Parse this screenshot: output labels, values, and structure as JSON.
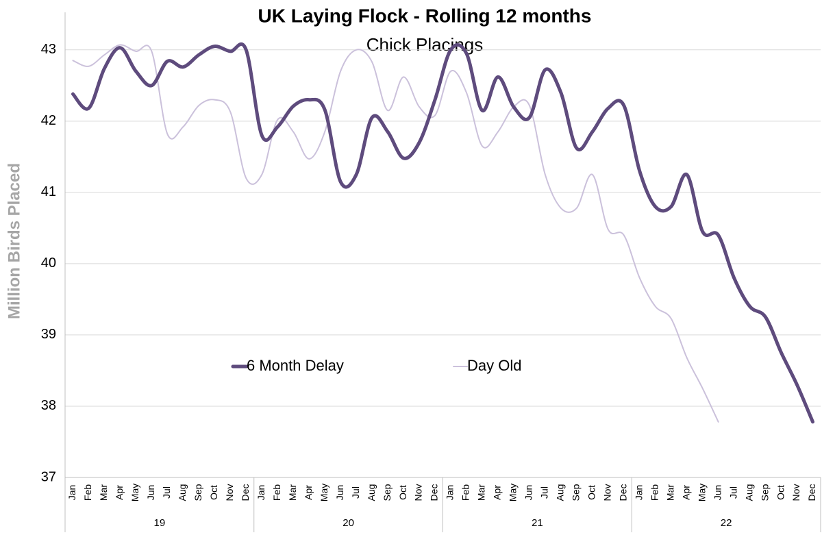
{
  "chart_data": {
    "type": "line",
    "title": "UK Laying Flock - Rolling 12 months",
    "subtitle": "Chick Placings",
    "y_label": "Million Birds Placed",
    "categories": [
      "Jan",
      "Feb",
      "Mar",
      "Apr",
      "May",
      "Jun",
      "Jul",
      "Aug",
      "Sep",
      "Oct",
      "Nov",
      "Dec",
      "Jan",
      "Feb",
      "Mar",
      "Apr",
      "May",
      "Jun",
      "Jul",
      "Aug",
      "Sep",
      "Oct",
      "Nov",
      "Dec",
      "Jan",
      "Feb",
      "Mar",
      "Apr",
      "May",
      "Jun",
      "Jul",
      "Aug",
      "Sep",
      "Oct",
      "Nov",
      "Dec",
      "Jan",
      "Feb",
      "Mar",
      "Apr",
      "May",
      "Jun",
      "Jul",
      "Aug",
      "Sep",
      "Oct",
      "Nov",
      "Dec"
    ],
    "x_groups": [
      "19",
      "20",
      "21",
      "22"
    ],
    "series": [
      {
        "name": "6 Month Delay",
        "color": "#5e4b7d",
        "width": 5,
        "values": [
          42.38,
          42.18,
          42.74,
          43.03,
          42.7,
          42.5,
          42.84,
          42.76,
          42.93,
          43.05,
          42.98,
          43.0,
          41.8,
          41.92,
          42.21,
          42.3,
          42.16,
          41.15,
          41.25,
          42.05,
          41.85,
          41.48,
          41.7,
          42.3,
          43.0,
          42.95,
          42.15,
          42.62,
          42.2,
          42.05,
          42.72,
          42.4,
          41.62,
          41.85,
          42.18,
          42.22,
          41.3,
          40.8,
          40.8,
          41.25,
          40.45,
          40.4,
          39.8,
          39.4,
          39.25,
          38.75,
          38.3,
          37.78
        ]
      },
      {
        "name": "Day Old",
        "color": "#cbc1db",
        "width": 2,
        "values": [
          42.85,
          42.77,
          42.93,
          43.07,
          42.98,
          42.98,
          41.82,
          41.92,
          42.22,
          42.3,
          42.13,
          41.2,
          41.25,
          42.02,
          41.85,
          41.47,
          41.85,
          42.7,
          43.0,
          42.83,
          42.15,
          42.62,
          42.2,
          42.08,
          42.7,
          42.4,
          41.65,
          41.85,
          42.2,
          42.22,
          41.25,
          40.78,
          40.78,
          41.25,
          40.48,
          40.4,
          39.8,
          39.4,
          39.23,
          38.68,
          38.25,
          37.78,
          null,
          null,
          null,
          null,
          null,
          null
        ]
      }
    ],
    "ylim": [
      37,
      43.2
    ],
    "yticks": [
      37,
      38,
      39,
      40,
      41,
      42,
      43
    ],
    "grid": true,
    "smooth": true,
    "legend": "center"
  }
}
